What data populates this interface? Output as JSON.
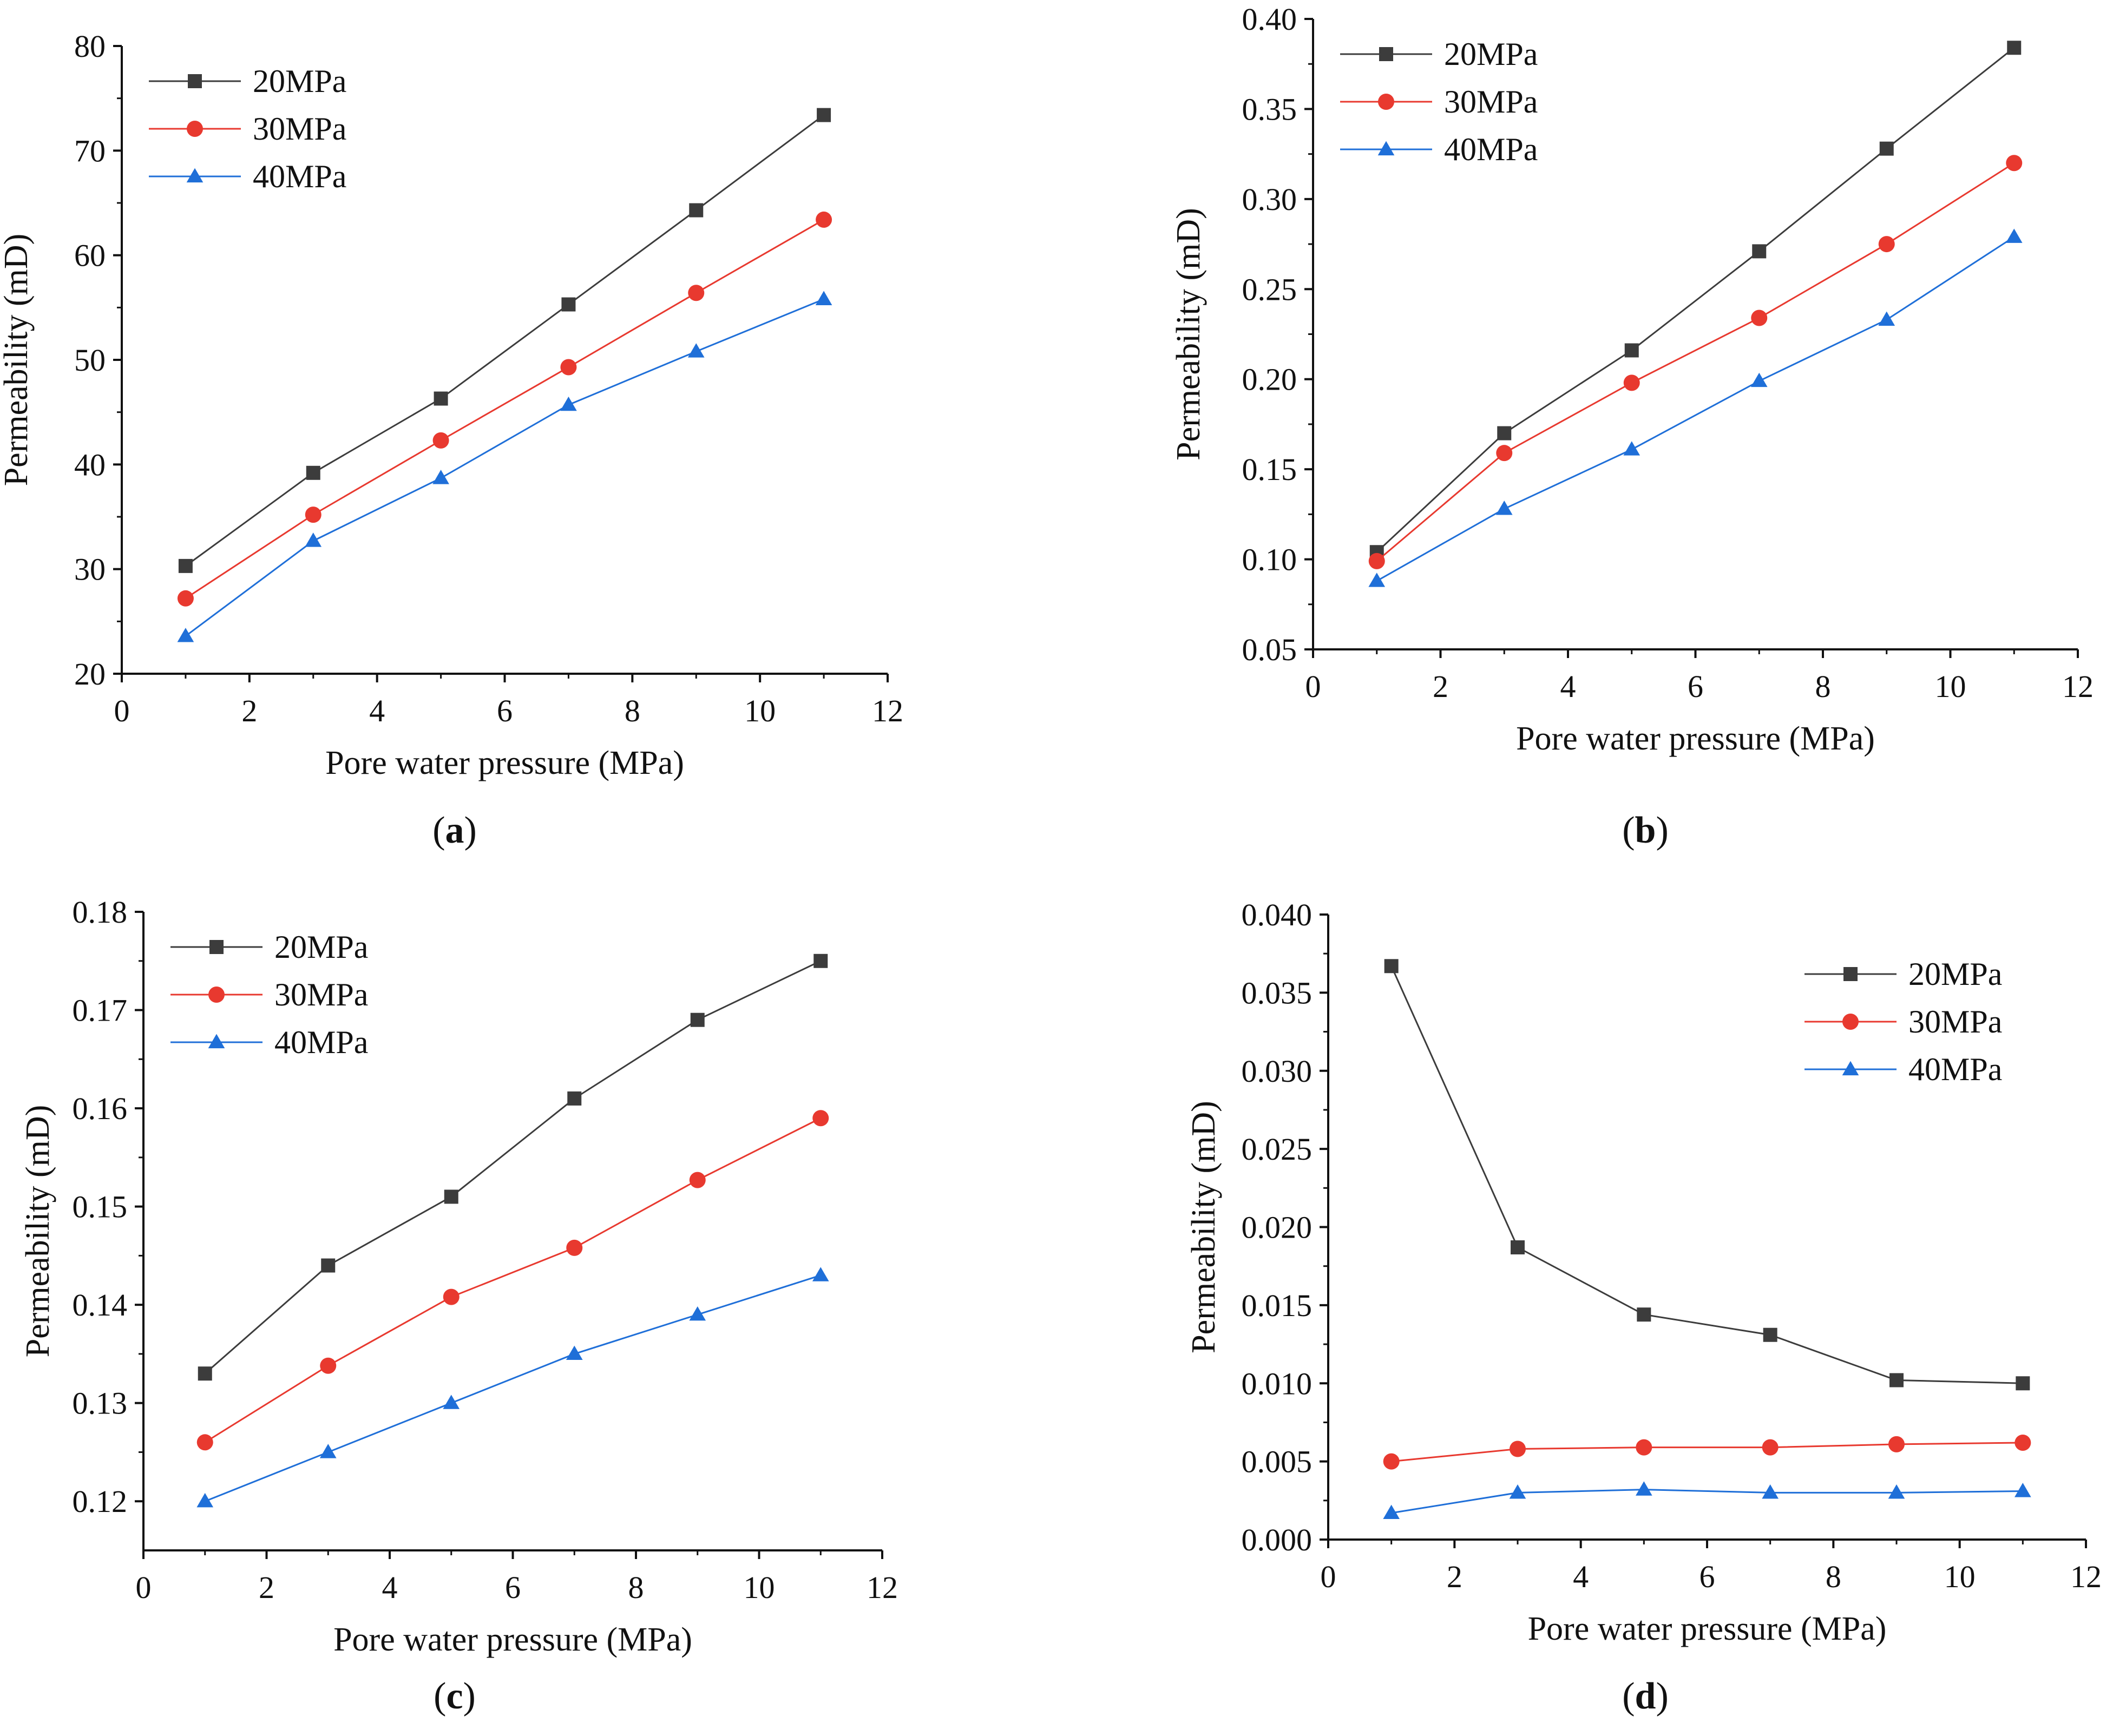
{
  "colors": {
    "20MPa": "#3c3c3c",
    "30MPa": "#e8392f",
    "40MPa": "#1f6fd8",
    "axis": "#111111"
  },
  "chart_data": [
    {
      "id": "a",
      "type": "line",
      "caption": {
        "letter": "a"
      },
      "xlabel": "Pore water pressure (MPa)",
      "ylabel": "Permeability (mD)",
      "xlim": [
        0,
        12
      ],
      "ylim": [
        20,
        80
      ],
      "xticks": [
        "0",
        "2",
        "4",
        "6",
        "8",
        "10",
        "12"
      ],
      "yticks": [
        "20",
        "30",
        "40",
        "50",
        "60",
        "70",
        "80"
      ],
      "x": [
        1,
        3,
        5,
        7,
        9,
        11
      ],
      "legend_position": "top-left",
      "series": [
        {
          "name": "20MPa",
          "marker": "square",
          "values": [
            30.3,
            39.2,
            46.3,
            55.3,
            64.3,
            73.4
          ]
        },
        {
          "name": "30MPa",
          "marker": "circle",
          "values": [
            27.2,
            35.2,
            42.3,
            49.3,
            56.4,
            63.4
          ]
        },
        {
          "name": "40MPa",
          "marker": "triangle",
          "values": [
            23.6,
            32.7,
            38.7,
            45.7,
            50.8,
            55.8
          ]
        }
      ]
    },
    {
      "id": "b",
      "type": "line",
      "caption": {
        "letter": "b"
      },
      "xlabel": "Pore water pressure (MPa)",
      "ylabel": "Permeability (mD)",
      "xlim": [
        0,
        12
      ],
      "ylim": [
        0.05,
        0.4
      ],
      "xticks": [
        "0",
        "2",
        "4",
        "6",
        "8",
        "10",
        "12"
      ],
      "yticks": [
        "0.05",
        "0.10",
        "0.15",
        "0.20",
        "0.25",
        "0.30",
        "0.35",
        "0.40"
      ],
      "x": [
        1,
        3,
        5,
        7,
        9,
        11
      ],
      "legend_position": "top-left",
      "series": [
        {
          "name": "20MPa",
          "marker": "square",
          "values": [
            0.104,
            0.17,
            0.216,
            0.271,
            0.328,
            0.384
          ]
        },
        {
          "name": "30MPa",
          "marker": "circle",
          "values": [
            0.099,
            0.159,
            0.198,
            0.234,
            0.275,
            0.32
          ]
        },
        {
          "name": "40MPa",
          "marker": "triangle",
          "values": [
            0.088,
            0.128,
            0.161,
            0.199,
            0.233,
            0.279
          ]
        }
      ]
    },
    {
      "id": "c",
      "type": "line",
      "caption": {
        "letter": "c"
      },
      "xlabel": "Pore water pressure (MPa)",
      "ylabel": "Permeability (mD)",
      "xlim": [
        0,
        12
      ],
      "ylim": [
        0.115,
        0.18
      ],
      "xticks": [
        "0",
        "2",
        "4",
        "6",
        "8",
        "10",
        "12"
      ],
      "yticks": [
        "0.12",
        "0.13",
        "0.14",
        "0.15",
        "0.16",
        "0.17",
        "0.18"
      ],
      "x": [
        1,
        3,
        5,
        7,
        9,
        11
      ],
      "legend_position": "top-left",
      "series": [
        {
          "name": "20MPa",
          "marker": "square",
          "values": [
            0.133,
            0.144,
            0.151,
            0.161,
            0.169,
            0.175
          ]
        },
        {
          "name": "30MPa",
          "marker": "circle",
          "values": [
            0.126,
            0.1338,
            0.1408,
            0.1458,
            0.1527,
            0.159
          ]
        },
        {
          "name": "40MPa",
          "marker": "triangle",
          "values": [
            0.12,
            0.125,
            0.13,
            0.135,
            0.139,
            0.143
          ]
        }
      ]
    },
    {
      "id": "d",
      "type": "line",
      "caption": {
        "letter": "d"
      },
      "xlabel": "Pore water pressure (MPa)",
      "ylabel": "Permeability (mD)",
      "xlim": [
        0,
        12
      ],
      "ylim": [
        0.0,
        0.04
      ],
      "xticks": [
        "0",
        "2",
        "4",
        "6",
        "8",
        "10",
        "12"
      ],
      "yticks": [
        "0.000",
        "0.005",
        "0.010",
        "0.015",
        "0.020",
        "0.025",
        "0.030",
        "0.035",
        "0.040"
      ],
      "x": [
        1,
        3,
        5,
        7,
        9,
        11
      ],
      "legend_position": "top-right",
      "series": [
        {
          "name": "20MPa",
          "marker": "square",
          "values": [
            0.0367,
            0.0187,
            0.0144,
            0.0131,
            0.0102,
            0.01
          ]
        },
        {
          "name": "30MPa",
          "marker": "circle",
          "values": [
            0.005,
            0.0058,
            0.0059,
            0.0059,
            0.0061,
            0.0062
          ]
        },
        {
          "name": "40MPa",
          "marker": "triangle",
          "values": [
            0.0017,
            0.003,
            0.0032,
            0.003,
            0.003,
            0.0031
          ]
        }
      ]
    }
  ]
}
